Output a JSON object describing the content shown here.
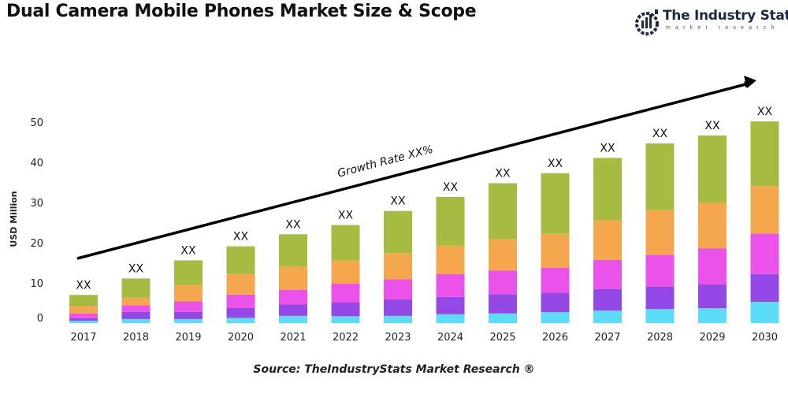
{
  "title": "Dual Camera Mobile Phones Market Size & Scope",
  "logo": {
    "name": "The Industry Stats",
    "tagline": "market research"
  },
  "source": "Source: TheIndustryStats Market Research ®",
  "chart_data": {
    "type": "bar",
    "stacked": true,
    "title": "Dual Camera Mobile Phones Market Size & Scope",
    "ylabel": "USD Million",
    "xlabel": "",
    "ylim": [
      0,
      50
    ],
    "yticks": [
      0,
      10,
      20,
      30,
      40,
      50
    ],
    "grid": false,
    "categories": [
      "2017",
      "2018",
      "2019",
      "2020",
      "2021",
      "2022",
      "2023",
      "2024",
      "2025",
      "2026",
      "2027",
      "2028",
      "2029",
      "2030"
    ],
    "series": [
      {
        "color": "#5cdcf7",
        "values": [
          0.6,
          1.0,
          1.0,
          1.3,
          1.8,
          1.7,
          1.8,
          2.2,
          2.4,
          2.7,
          3.1,
          3.5,
          3.7,
          5.3
        ]
      },
      {
        "color": "#9448e6",
        "values": [
          0.6,
          1.8,
          1.8,
          2.5,
          2.8,
          3.4,
          4.1,
          4.3,
          4.8,
          4.9,
          5.4,
          5.6,
          5.9,
          6.9
        ]
      },
      {
        "color": "#ea52ea",
        "values": [
          1.2,
          1.6,
          2.6,
          3.3,
          3.7,
          4.7,
          5.0,
          5.7,
          5.9,
          6.2,
          7.2,
          7.9,
          9.0,
          10.1
        ]
      },
      {
        "color": "#f4a74c",
        "values": [
          1.8,
          1.9,
          4.1,
          5.1,
          5.8,
          5.8,
          6.5,
          7.1,
          7.8,
          8.4,
          9.9,
          11.1,
          11.4,
          11.8
        ]
      },
      {
        "color": "#a5bb42",
        "values": [
          2.8,
          4.8,
          6.1,
          6.9,
          8.0,
          8.8,
          10.5,
          12.1,
          13.9,
          15.1,
          15.5,
          16.6,
          16.7,
          16.1
        ]
      }
    ],
    "data_labels": [
      "XX",
      "XX",
      "XX",
      "XX",
      "XX",
      "XX",
      "XX",
      "XX",
      "XX",
      "XX",
      "XX",
      "XX",
      "XX",
      "XX"
    ],
    "annotation": "Growth Rate XX%"
  }
}
